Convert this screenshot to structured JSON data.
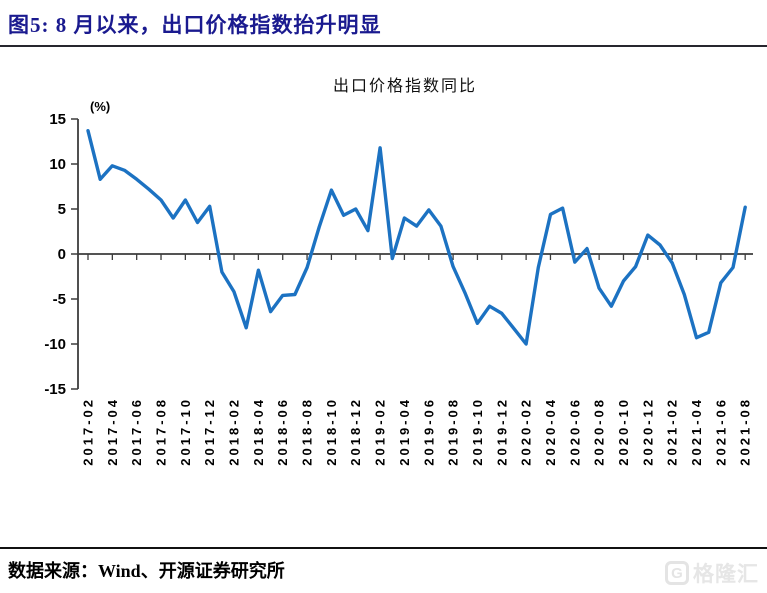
{
  "header": {
    "title": "图5: 8 月以来，出口价格指数抬升明显",
    "title_color": "#1A1A8F"
  },
  "chart_data": {
    "type": "line",
    "title": "出口价格指数同比",
    "unit_label": "(%)",
    "xlabel": "",
    "ylabel": "(%)",
    "ylim": [
      -15,
      15
    ],
    "y_ticks": [
      15,
      10,
      5,
      0,
      -5,
      -10,
      -15
    ],
    "x_tick_every": 2,
    "grid": false,
    "legend": "none",
    "line_color": "#1C72C2",
    "axis_color": "#3c3c3c",
    "categories": [
      "2017-02",
      "2017-03",
      "2017-04",
      "2017-05",
      "2017-06",
      "2017-07",
      "2017-08",
      "2017-09",
      "2017-10",
      "2017-11",
      "2017-12",
      "2018-01",
      "2018-02",
      "2018-03",
      "2018-04",
      "2018-05",
      "2018-06",
      "2018-07",
      "2018-08",
      "2018-09",
      "2018-10",
      "2018-11",
      "2018-12",
      "2019-01",
      "2019-02",
      "2019-03",
      "2019-04",
      "2019-05",
      "2019-06",
      "2019-07",
      "2019-08",
      "2019-09",
      "2019-10",
      "2019-11",
      "2019-12",
      "2020-01",
      "2020-02",
      "2020-03",
      "2020-04",
      "2020-05",
      "2020-06",
      "2020-07",
      "2020-08",
      "2020-09",
      "2020-10",
      "2020-11",
      "2020-12",
      "2021-01",
      "2021-02",
      "2021-03",
      "2021-04",
      "2021-05",
      "2021-06",
      "2021-07",
      "2021-08"
    ],
    "values": [
      13.7,
      8.3,
      9.8,
      9.3,
      8.3,
      7.2,
      6.0,
      4.0,
      6.0,
      3.5,
      5.3,
      -2.0,
      -4.2,
      -8.2,
      -1.8,
      -6.4,
      -4.6,
      -4.5,
      -1.5,
      3.0,
      7.1,
      4.3,
      5.0,
      2.6,
      11.8,
      -0.5,
      4.0,
      3.1,
      4.9,
      3.1,
      -1.4,
      -4.4,
      -7.7,
      -5.8,
      -6.6,
      -8.3,
      -10.0,
      -1.5,
      4.4,
      5.1,
      -0.9,
      0.6,
      -3.8,
      -5.8,
      -3.0,
      -1.4,
      2.1,
      1.0,
      -1.0,
      -4.5,
      -9.3,
      -8.7,
      -3.2,
      -1.5,
      5.2
    ]
  },
  "footer": {
    "source": "数据来源：Wind、开源证券研究所",
    "watermark": "格隆汇",
    "watermark_logo_letter": "G"
  }
}
